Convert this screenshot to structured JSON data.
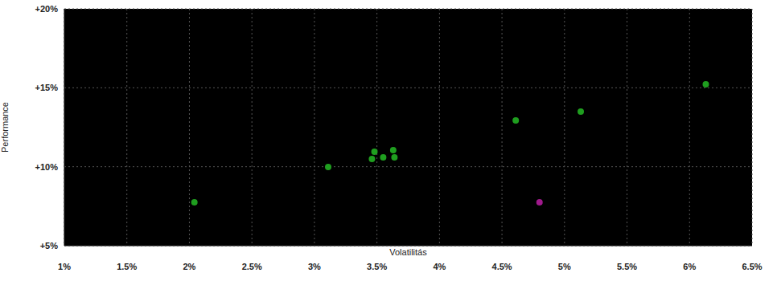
{
  "chart_data": {
    "type": "scatter",
    "x_label": "Volatilitás",
    "y_label": "Performance",
    "x": [
      2.04,
      3.11,
      3.48,
      3.46,
      3.55,
      3.63,
      3.64,
      4.61,
      5.13,
      6.13,
      4.8
    ],
    "values": [
      7.75,
      9.98,
      10.95,
      10.49,
      10.59,
      11.05,
      10.59,
      12.93,
      13.49,
      15.22,
      7.75
    ],
    "colors": [
      "#1f9e1f",
      "#1f9e1f",
      "#1f9e1f",
      "#1f9e1f",
      "#1f9e1f",
      "#1f9e1f",
      "#1f9e1f",
      "#1f9e1f",
      "#1f9e1f",
      "#1f9e1f",
      "#a0198c"
    ],
    "xlim": [
      1,
      6.5
    ],
    "xticks": [
      {
        "value": 1,
        "label": "1%"
      },
      {
        "value": 1.5,
        "label": "1.5%"
      },
      {
        "value": 2,
        "label": "2%"
      },
      {
        "value": 2.5,
        "label": "2.5%"
      },
      {
        "value": 3,
        "label": "3%"
      },
      {
        "value": 3.5,
        "label": "3.5%"
      },
      {
        "value": 4,
        "label": "4%"
      },
      {
        "value": 4.5,
        "label": "4.5%"
      },
      {
        "value": 5,
        "label": "5%"
      },
      {
        "value": 5.5,
        "label": "5.5%"
      },
      {
        "value": 6,
        "label": "6%"
      },
      {
        "value": 6.5,
        "label": "6.5%"
      }
    ],
    "ylim": [
      5,
      20
    ],
    "yticks": [
      {
        "value": 5,
        "label": "+5%"
      },
      {
        "value": 10,
        "label": "+10%"
      },
      {
        "value": 15,
        "label": "+15%"
      },
      {
        "value": 20,
        "label": "+20%"
      }
    ],
    "grid": true
  }
}
